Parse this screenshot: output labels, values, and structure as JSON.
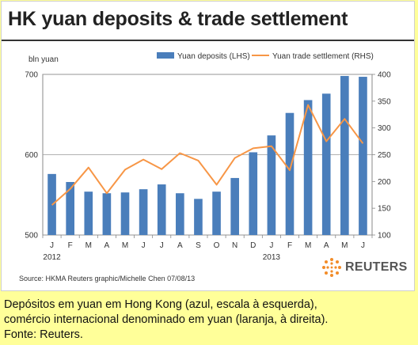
{
  "title": "HK yuan deposits & trade settlement",
  "source": "Source: HKMA   Reuters graphic/Michelle Chen 07/08/13",
  "logo_text": "REUTERS",
  "caption": [
    "Depósitos em yuan em Hong Kong (azul, escala à esquerda),",
    "comércio internacional denominado em yuan (laranja, à direita).",
    "Fonte: Reuters."
  ],
  "colors": {
    "bar": "#4a7ebb",
    "line": "#f79646",
    "background": "#ffff99"
  },
  "chart_data": {
    "type": "bar",
    "categories": [
      "J",
      "F",
      "M",
      "A",
      "M",
      "J",
      "J",
      "A",
      "S",
      "O",
      "N",
      "D",
      "J",
      "F",
      "M",
      "A",
      "M",
      "J"
    ],
    "year_labels": [
      {
        "label": "2012",
        "index": 0
      },
      {
        "label": "2013",
        "index": 12
      }
    ],
    "ylabel": "bln yuan",
    "ylim": [
      500,
      700
    ],
    "y_ticks": [
      500,
      600,
      700
    ],
    "y2lim": [
      100,
      400
    ],
    "y2_ticks": [
      100,
      150,
      200,
      250,
      300,
      350,
      400
    ],
    "grid": true,
    "legend_position": "top",
    "series": [
      {
        "name": "Yuan deposits (LHS)",
        "type": "bar",
        "axis": "left",
        "values": [
          576,
          566,
          554,
          552,
          553,
          557,
          563,
          552,
          545,
          554,
          571,
          603,
          624,
          652,
          668,
          676,
          698,
          697
        ]
      },
      {
        "name": "Yuan trade settlement (RHS)",
        "type": "line",
        "axis": "right",
        "values": [
          156,
          186,
          226,
          178,
          222,
          241,
          223,
          253,
          239,
          194,
          244,
          262,
          266,
          221,
          343,
          275,
          317,
          271
        ]
      }
    ]
  }
}
